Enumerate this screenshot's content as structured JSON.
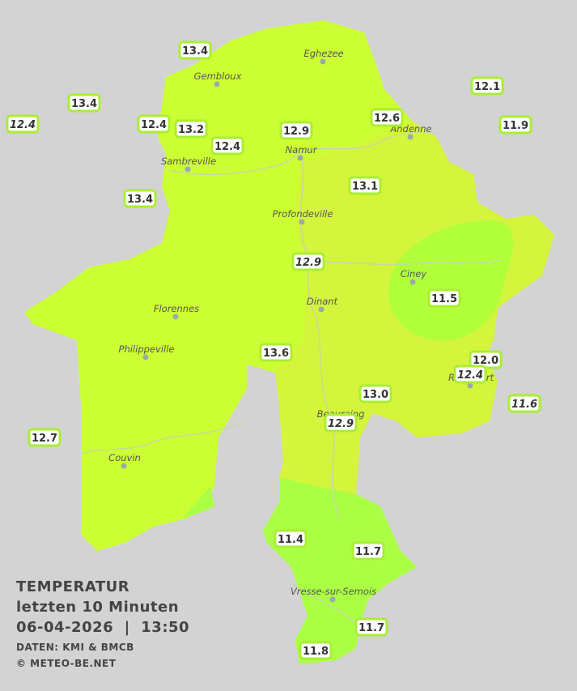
{
  "title": {
    "line1": "TEMPERATUR",
    "line2": "letzten 10 Minuten",
    "line3": "06-04-2026  |  13:50",
    "source": "DATEN: KMI & BMCB",
    "copyright": "© METEO-BE.NET"
  },
  "towns": [
    {
      "name": "Eghezee"
    },
    {
      "name": "Gembloux"
    },
    {
      "name": "Andenne"
    },
    {
      "name": "Namur"
    },
    {
      "name": "Sambreville"
    },
    {
      "name": "Profondeville"
    },
    {
      "name": "Ciney"
    },
    {
      "name": "Dinant"
    },
    {
      "name": "Florennes"
    },
    {
      "name": "Philippeville"
    },
    {
      "name": "Rochefort"
    },
    {
      "name": "Beauraing"
    },
    {
      "name": "Couvin"
    },
    {
      "name": "Vresse-sur-Semois"
    }
  ],
  "stations": [
    {
      "temp": "13.4"
    },
    {
      "temp": "13.4"
    },
    {
      "temp": "12.4",
      "italic": true
    },
    {
      "temp": "12.4"
    },
    {
      "temp": "13.2"
    },
    {
      "temp": "12.4"
    },
    {
      "temp": "12.9"
    },
    {
      "temp": "12.6"
    },
    {
      "temp": "12.1"
    },
    {
      "temp": "11.9"
    },
    {
      "temp": "13.4"
    },
    {
      "temp": "13.1"
    },
    {
      "temp": "12.9",
      "italic": true
    },
    {
      "temp": "11.5"
    },
    {
      "temp": "13.6"
    },
    {
      "temp": "12.0"
    },
    {
      "temp": "12.4",
      "italic": true
    },
    {
      "temp": "13.0"
    },
    {
      "temp": "12.9",
      "italic": true
    },
    {
      "temp": "11.6",
      "italic": true
    },
    {
      "temp": "12.7"
    },
    {
      "temp": "11.4"
    },
    {
      "temp": "11.7"
    },
    {
      "temp": "11.7"
    },
    {
      "temp": "11.8"
    }
  ]
}
